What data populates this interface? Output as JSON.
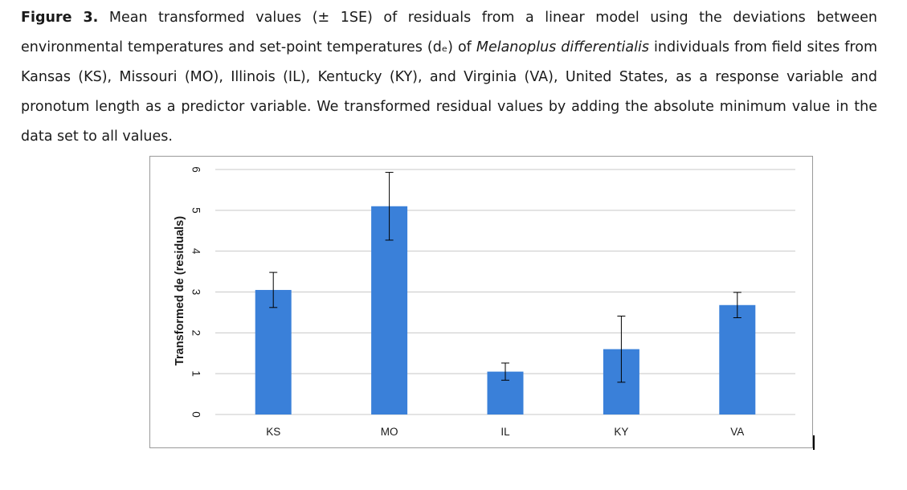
{
  "caption": {
    "label": "Figure 3.",
    "text_before_species": " Mean transformed values (± 1SE) of residuals from a linear model using the deviations between environmental temperatures and set-point temperatures (dₑ) of ",
    "species": "Melanoplus differentialis",
    "text_after_species": " individuals from field sites from Kansas (KS), Missouri (MO), Illinois (IL), Kentucky (KY), and Virginia (VA), United States, as a response variable and pronotum length as a predictor variable. We transformed residual values by adding the absolute minimum value in the data set to all values."
  },
  "chart_data": {
    "type": "bar",
    "categories": [
      "KS",
      "MO",
      "IL",
      "KY",
      "VA"
    ],
    "values": [
      3.05,
      5.1,
      1.05,
      1.6,
      2.68
    ],
    "error": [
      0.43,
      0.83,
      0.21,
      0.81,
      0.31
    ],
    "ylabel": "Transformed de (residuals)",
    "xlabel": "",
    "ylim": [
      0,
      6
    ],
    "yticks": [
      "0",
      "1",
      "2",
      "3",
      "4",
      "5",
      "6"
    ],
    "grid": true,
    "colors": {
      "bar": "#3a80d9",
      "grid": "#c8c8c8",
      "axis_text": "#1a1a1a",
      "error_bar": "#000000"
    }
  }
}
